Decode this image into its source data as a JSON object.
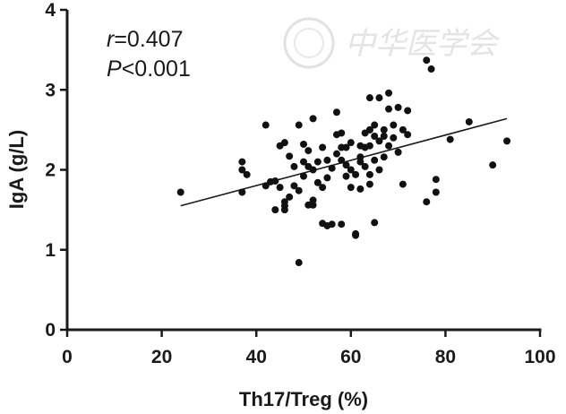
{
  "chart_data": {
    "type": "scatter",
    "title": "",
    "xlabel": "Th17/Treg (%)",
    "ylabel": "IgA (g/L)",
    "xlim": [
      0,
      100
    ],
    "ylim": [
      0,
      4
    ],
    "xticks": [
      "0",
      "20",
      "40",
      "60",
      "80",
      "100"
    ],
    "yticks": [
      "0",
      "1",
      "2",
      "3",
      "4"
    ],
    "grid": false,
    "annotations": {
      "r_symbol": "r",
      "r_value": "=0.407",
      "p_symbol": "P",
      "p_value": "<0.001"
    },
    "watermark_text": "中华医学会",
    "fit_line": {
      "x": [
        24,
        93
      ],
      "y": [
        1.55,
        2.64
      ]
    },
    "points": [
      [
        24,
        1.72
      ],
      [
        37,
        2.1
      ],
      [
        37,
        1.72
      ],
      [
        37,
        2.0
      ],
      [
        38,
        1.94
      ],
      [
        42,
        1.8
      ],
      [
        42,
        2.56
      ],
      [
        43,
        1.85
      ],
      [
        44,
        1.5
      ],
      [
        44,
        1.86
      ],
      [
        45,
        1.78
      ],
      [
        45,
        2.3
      ],
      [
        46,
        1.6
      ],
      [
        46,
        1.55
      ],
      [
        46,
        1.5
      ],
      [
        46,
        2.34
      ],
      [
        47,
        2.17
      ],
      [
        47,
        1.66
      ],
      [
        48,
        2.04
      ],
      [
        48,
        1.8
      ],
      [
        49,
        1.74
      ],
      [
        49,
        2.56
      ],
      [
        49,
        0.84
      ],
      [
        50,
        2.1
      ],
      [
        50,
        2.32
      ],
      [
        50,
        1.92
      ],
      [
        51,
        1.56
      ],
      [
        51,
        2.04
      ],
      [
        51,
        2.24
      ],
      [
        52,
        1.56
      ],
      [
        52,
        2.64
      ],
      [
        52,
        2.0
      ],
      [
        52,
        1.62
      ],
      [
        53,
        2.1
      ],
      [
        53,
        1.84
      ],
      [
        54,
        1.78
      ],
      [
        54,
        1.33
      ],
      [
        54,
        2.28
      ],
      [
        55,
        1.3
      ],
      [
        55,
        1.9
      ],
      [
        55,
        2.12
      ],
      [
        56,
        2.02
      ],
      [
        56,
        1.32
      ],
      [
        57,
        2.2
      ],
      [
        57,
        2.72
      ],
      [
        57,
        2.44
      ],
      [
        58,
        2.46
      ],
      [
        58,
        1.32
      ],
      [
        58,
        2.28
      ],
      [
        58,
        2.12
      ],
      [
        59,
        1.92
      ],
      [
        59,
        2.06
      ],
      [
        59,
        2.28
      ],
      [
        60,
        1.78
      ],
      [
        60,
        2.0
      ],
      [
        60,
        2.34
      ],
      [
        61,
        1.18
      ],
      [
        61,
        1.2
      ],
      [
        61,
        1.94
      ],
      [
        62,
        2.1
      ],
      [
        62,
        2.3
      ],
      [
        62,
        1.76
      ],
      [
        62,
        2.16
      ],
      [
        63,
        2.04
      ],
      [
        63,
        2.28
      ],
      [
        63,
        2.46
      ],
      [
        64,
        2.3
      ],
      [
        64,
        2.5
      ],
      [
        64,
        1.94
      ],
      [
        64,
        2.9
      ],
      [
        64,
        1.82
      ],
      [
        65,
        2.12
      ],
      [
        65,
        2.56
      ],
      [
        65,
        2.42
      ],
      [
        65,
        1.34
      ],
      [
        66,
        2.36
      ],
      [
        66,
        2.0
      ],
      [
        66,
        2.9
      ],
      [
        67,
        2.16
      ],
      [
        67,
        2.42
      ],
      [
        67,
        2.5
      ],
      [
        68,
        2.96
      ],
      [
        68,
        2.3
      ],
      [
        68,
        2.76
      ],
      [
        69,
        2.56
      ],
      [
        69,
        2.4
      ],
      [
        70,
        2.22
      ],
      [
        70,
        2.78
      ],
      [
        71,
        2.5
      ],
      [
        71,
        1.82
      ],
      [
        72,
        2.44
      ],
      [
        72,
        2.74
      ],
      [
        76,
        1.6
      ],
      [
        76,
        3.37
      ],
      [
        77,
        3.26
      ],
      [
        78,
        1.72
      ],
      [
        78,
        1.88
      ],
      [
        81,
        2.38
      ],
      [
        85,
        2.6
      ],
      [
        90,
        2.06
      ],
      [
        93,
        2.36
      ]
    ]
  }
}
